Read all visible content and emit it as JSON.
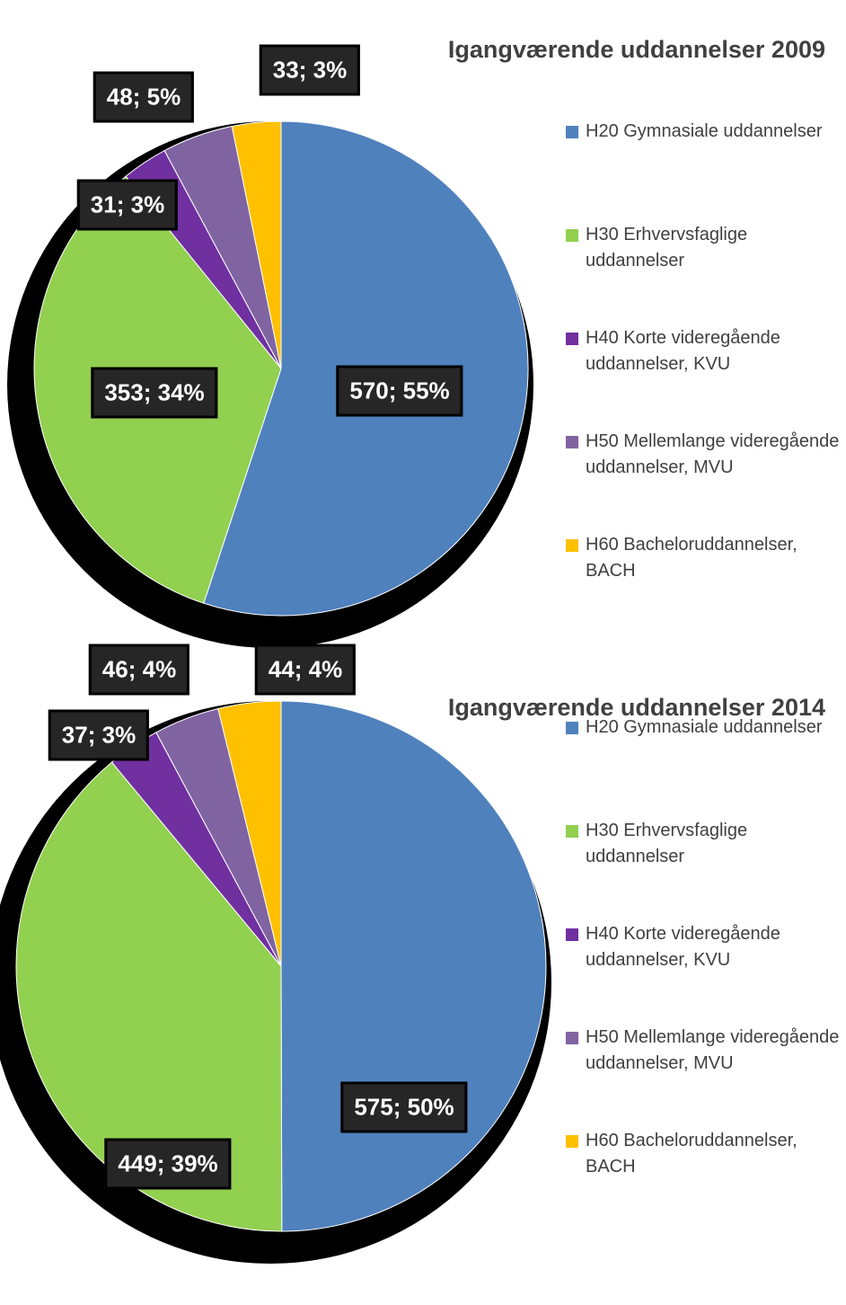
{
  "chart_data": [
    {
      "type": "pie",
      "title": "Igangværende uddannelser 2009",
      "categories": [
        "H20 Gymnasiale uddannelser",
        "H30 Erhvervsfaglige uddannelser",
        "H40 Korte videregående uddannelser, KVU",
        "H50 Mellemlange videregående uddannelser, MVU",
        "H60 Bacheloruddannelser, BACH"
      ],
      "values": [
        570,
        353,
        31,
        48,
        33
      ],
      "value_labels": [
        "570; 55%",
        "353; 34%",
        "31; 3%",
        "48; 5%",
        "33; 3%"
      ],
      "colors": [
        "#4f81bd",
        "#92d050",
        "#7030a0",
        "#8064a2",
        "#ffc000"
      ],
      "legend": "right"
    },
    {
      "type": "pie",
      "title": "Igangværende uddannelser 2014",
      "categories": [
        "H20 Gymnasiale uddannelser",
        "H30 Erhvervsfaglige uddannelser",
        "H40 Korte videregående uddannelser, KVU",
        "H50 Mellemlange videregående uddannelser, MVU",
        "H60 Bacheloruddannelser, BACH"
      ],
      "values": [
        575,
        449,
        37,
        46,
        44
      ],
      "value_labels": [
        "575; 50%",
        "449; 39%",
        "37; 3%",
        "46; 4%",
        "44; 4%"
      ],
      "colors": [
        "#4f81bd",
        "#92d050",
        "#7030a0",
        "#8064a2",
        "#ffc000"
      ],
      "legend": "right"
    }
  ]
}
